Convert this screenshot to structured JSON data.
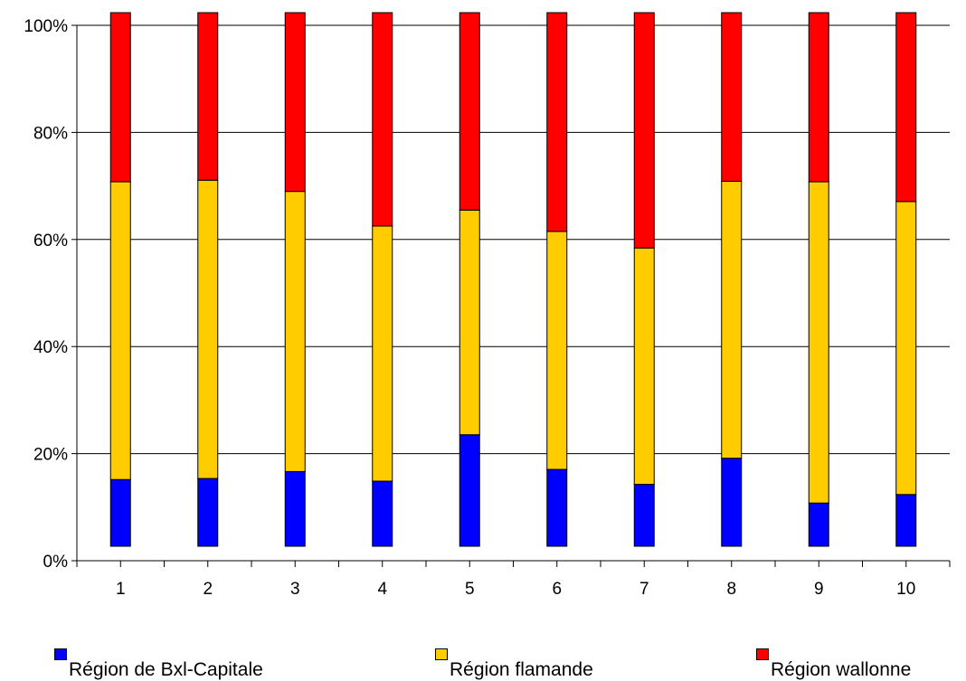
{
  "chart_data": {
    "type": "bar",
    "stacked": true,
    "percent": true,
    "categories": [
      "1",
      "2",
      "3",
      "4",
      "5",
      "6",
      "7",
      "8",
      "9",
      "10"
    ],
    "series": [
      {
        "name": "Région de Bxl-Capitale",
        "color": "#0000ff",
        "values": [
          12.5,
          12.7,
          14.0,
          12.2,
          20.9,
          14.4,
          11.6,
          16.5,
          8.1,
          9.7
        ]
      },
      {
        "name": "Région flamande",
        "color": "#ffcc00",
        "values": [
          55.8,
          55.9,
          52.5,
          47.8,
          42.1,
          44.6,
          44.3,
          51.9,
          60.2,
          54.9
        ]
      },
      {
        "name": "Région wallonne",
        "color": "#ff0000",
        "values": [
          31.7,
          31.4,
          33.5,
          40.0,
          37.0,
          41.0,
          44.1,
          31.6,
          31.7,
          35.4
        ]
      }
    ],
    "yticks": [
      "0%",
      "20%",
      "40%",
      "60%",
      "80%",
      "100%"
    ],
    "ylim": [
      0,
      100
    ],
    "grid": true,
    "legend_position": "bottom"
  }
}
